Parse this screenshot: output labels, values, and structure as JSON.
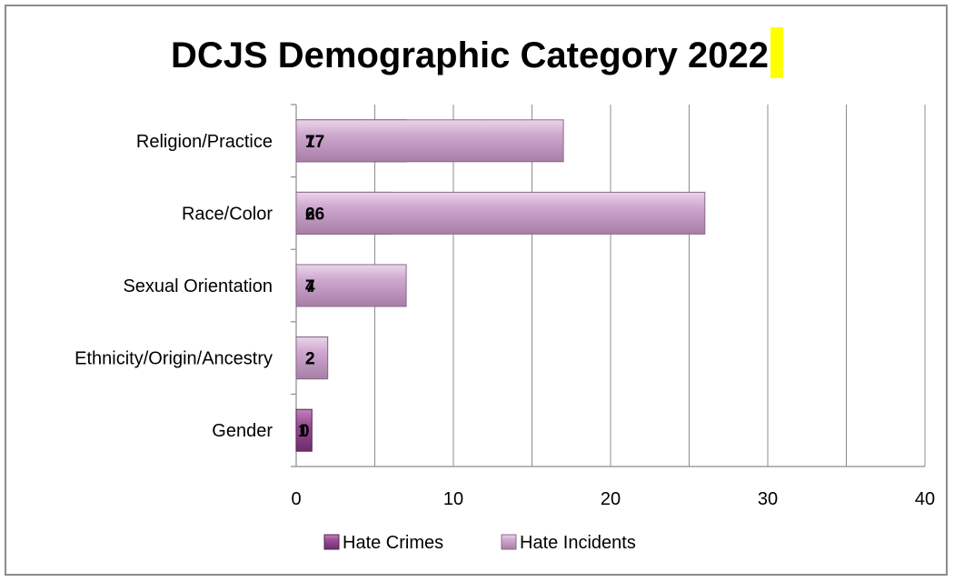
{
  "chart_data": {
    "type": "bar",
    "orientation": "horizontal",
    "stacked": true,
    "title": "DCJS Demographic Category 2022",
    "categories": [
      "Religion/Practice",
      "Race/Color",
      "Sexual Orientation",
      "Ethnicity/Origin/Ancestry",
      "Gender"
    ],
    "series": [
      {
        "name": "Hate Crimes",
        "values": [
          7,
          6,
          4,
          2,
          1
        ],
        "color": "#8e3f88"
      },
      {
        "name": "Hate Incidents",
        "values": [
          17,
          26,
          7,
          2,
          0
        ],
        "color": "#c8a0c8"
      }
    ],
    "xlim": [
      0,
      40
    ],
    "xticks": [
      0,
      10,
      20,
      30,
      40
    ],
    "grid": true,
    "legend": "bottom",
    "title_highlight_color": "#ffff00"
  }
}
